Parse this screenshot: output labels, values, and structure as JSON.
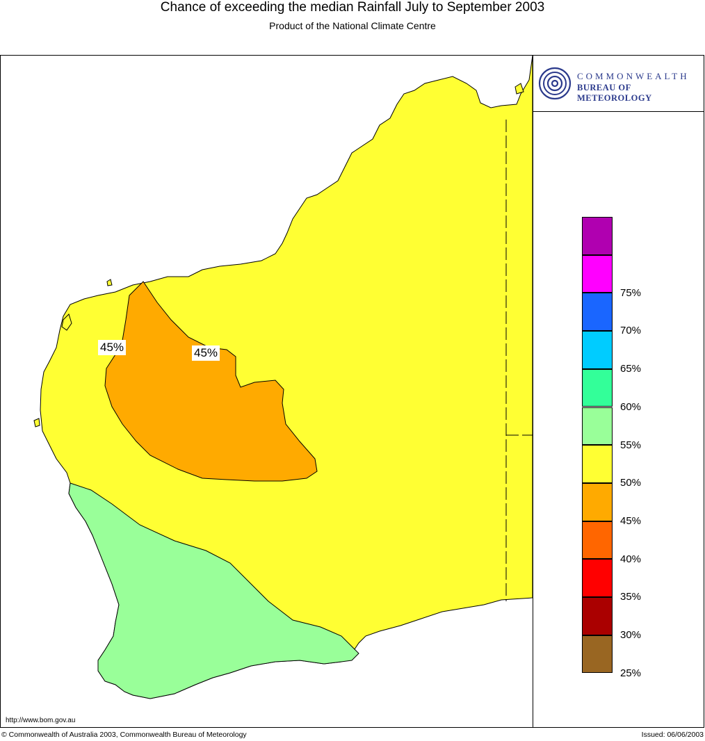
{
  "header": {
    "title": "Chance of exceeding the median Rainfall July to September 2003",
    "subtitle": "Product of the National Climate Centre"
  },
  "logo": {
    "line1": "COMMONWEALTH",
    "line2": "BUREAU OF METEOROLOGY",
    "color": "#2b3a8c"
  },
  "map": {
    "land_color_default": "#ffff33",
    "region_labels": [
      "45%",
      "45%"
    ]
  },
  "legend": {
    "items": [
      {
        "color": "#b000b0",
        "label": ""
      },
      {
        "color": "#ff00ff",
        "label": "75%"
      },
      {
        "color": "#1a66ff",
        "label": "70%"
      },
      {
        "color": "#00ccff",
        "label": "65%"
      },
      {
        "color": "#33ff99",
        "label": "60%"
      },
      {
        "color": "#99ff99",
        "label": "55%"
      },
      {
        "color": "#ffff33",
        "label": "50%"
      },
      {
        "color": "#ffaa00",
        "label": "45%"
      },
      {
        "color": "#ff6600",
        "label": "40%"
      },
      {
        "color": "#ff0000",
        "label": "35%"
      },
      {
        "color": "#aa0000",
        "label": "30%"
      },
      {
        "color": "#996622",
        "label": "25%"
      }
    ]
  },
  "footer": {
    "url": "http://www.bom.gov.au",
    "copyright": "© Commonwealth of Australia 2003, Commonwealth Bureau of Meteorology",
    "issued": "Issued: 06/06/2003"
  }
}
